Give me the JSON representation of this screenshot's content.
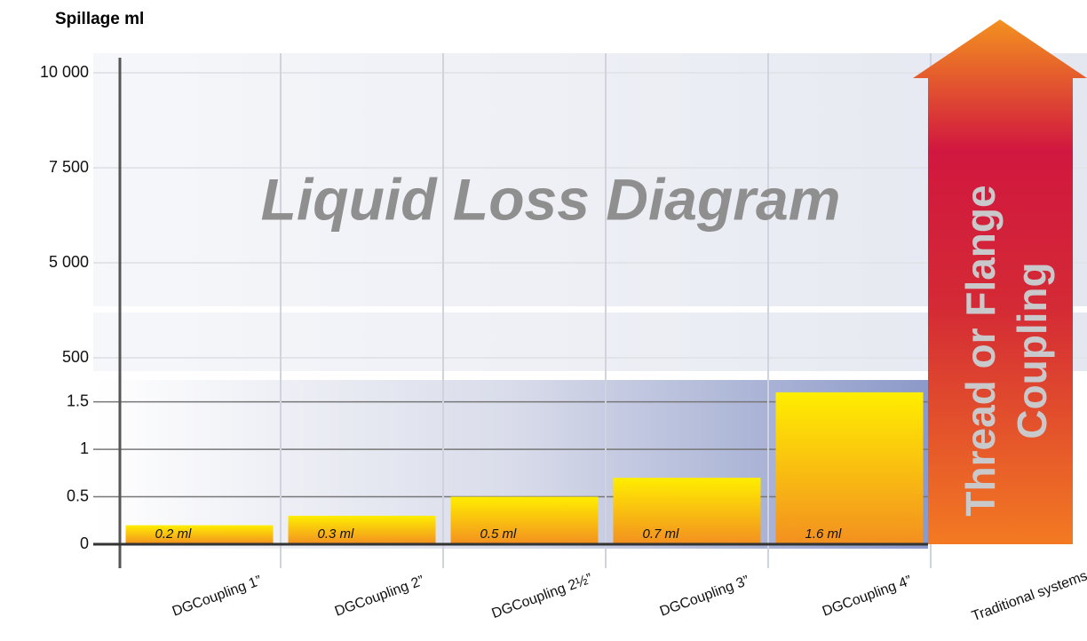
{
  "chart_data": {
    "type": "bar",
    "title": "Spillage ml",
    "watermark": "Liquid Loss Diagram",
    "arrow_label": [
      "Thread or Flange",
      "Coupling"
    ],
    "categories": [
      "DGCoupling 1”",
      "DGCoupling 2”",
      "DGCoupling 2½”",
      "DGCoupling 3”",
      "DGCoupling 4”",
      "Traditional systems"
    ],
    "values": [
      0.2,
      0.3,
      0.5,
      0.7,
      1.6,
      null
    ],
    "value_labels": [
      "0.2 ml",
      "0.3 ml",
      "0.5 ml",
      "0.7 ml",
      "1.6 ml",
      null
    ],
    "ylim": [
      0,
      1.73
    ],
    "yticks": [
      0,
      0.5,
      1,
      1.5,
      500,
      {
        "value": 5000,
        "label": "5 000"
      },
      {
        "value": 7500,
        "label": "7 500"
      },
      {
        "value": 10000,
        "label": "10 000"
      }
    ],
    "grid": true
  }
}
